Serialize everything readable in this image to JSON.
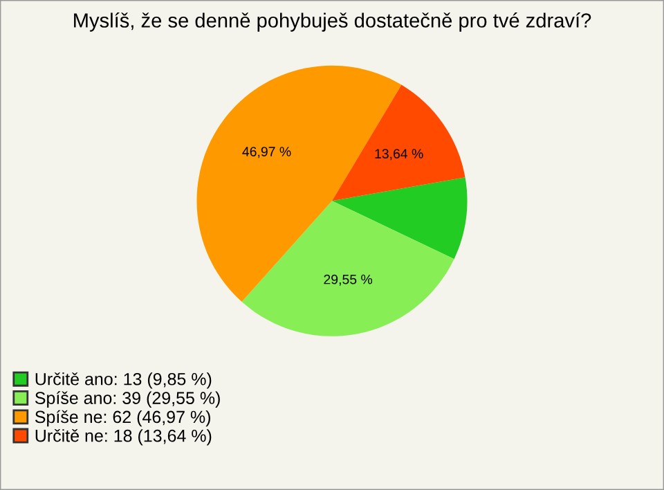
{
  "chart_data": {
    "type": "pie",
    "title": "Myslíš, že se denně pohybuješ dostatečně pro tvé zdraví?",
    "categories": [
      "Určitě ano: 13 (9,85 %)",
      "Spíše ano: 39 (29,55 %)",
      "Spíše ne: 62 (46,97 %)",
      "Určitě ne: 18 (13,64 %)"
    ],
    "values": [
      9.85,
      29.55,
      46.97,
      13.64
    ],
    "colors": [
      "#22cc22",
      "#88ee55",
      "#ff9900",
      "#ff4a00"
    ],
    "value_labels": [
      null,
      "29,55 %",
      "46,97 %",
      "13,64 %"
    ],
    "legend": "bottom left"
  }
}
